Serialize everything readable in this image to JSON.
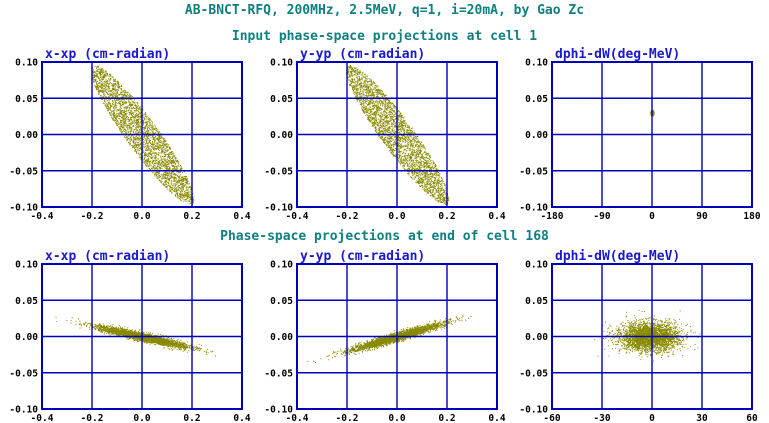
{
  "title": "AB-BNCT-RFQ, 200MHz, 2.5MeV, q=1, i=20mA, by Gao Zc",
  "row_titles": [
    "Input phase-space projections at cell 1",
    "Phase-space projections at end of cell 168"
  ],
  "colors": {
    "heading": "#0f7f7f",
    "panel_title": "#1a1acc",
    "frame": "#0000b8",
    "tick_label": "#000000",
    "points": "#8a8a00"
  },
  "chart_data": [
    {
      "type": "scatter",
      "title": "x-xp (cm-radian)",
      "xlim": [
        -0.4,
        0.4
      ],
      "ylim": [
        -0.1,
        0.1
      ],
      "xticks": [
        "-0.4",
        "-0.2",
        "0.0",
        "0.2",
        "0.4"
      ],
      "yticks": [
        "0.10",
        "0.05",
        "0.00",
        "-0.05",
        "-0.10"
      ],
      "grid": true,
      "distribution": {
        "center": [
          0.0,
          0.0
        ],
        "major_axis_end": [
          -0.2,
          0.095
        ],
        "minor_half_width": 0.022,
        "profile": "uniform"
      }
    },
    {
      "type": "scatter",
      "title": "y-yp (cm-radian)",
      "xlim": [
        -0.4,
        0.4
      ],
      "ylim": [
        -0.1,
        0.1
      ],
      "xticks": [
        "-0.4",
        "-0.2",
        "0.0",
        "0.2",
        "0.4"
      ],
      "yticks": [
        "0.10",
        "0.05",
        "0.00",
        "-0.05",
        "-0.10"
      ],
      "grid": true,
      "distribution": {
        "center": [
          0.0,
          0.0
        ],
        "major_axis_end": [
          -0.2,
          0.095
        ],
        "minor_half_width": 0.022,
        "profile": "uniform"
      }
    },
    {
      "type": "scatter",
      "title": "dphi-dW(deg-MeV)",
      "xlim": [
        -180,
        180
      ],
      "ylim": [
        -0.1,
        0.1
      ],
      "xticks": [
        "-180",
        "-90",
        "0",
        "90",
        "180"
      ],
      "yticks": [
        "0.10",
        "0.05",
        "0.00",
        "-0.05",
        "-0.10"
      ],
      "grid": true,
      "distribution": {
        "center": [
          0.0,
          0.03
        ],
        "major_axis_end": [
          3.0,
          0.03
        ],
        "minor_half_width": 0.004,
        "profile": "uniform"
      }
    },
    {
      "type": "scatter",
      "title": "x-xp (cm-radian)",
      "xlim": [
        -0.4,
        0.4
      ],
      "ylim": [
        -0.1,
        0.1
      ],
      "xticks": [
        "-0.4",
        "-0.2",
        "0.0",
        "0.2",
        "0.4"
      ],
      "yticks": [
        "0.10",
        "0.05",
        "0.00",
        "-0.05",
        "-0.10"
      ],
      "grid": true,
      "distribution": {
        "center": [
          0.0,
          0.0
        ],
        "major_axis_end": [
          -0.2,
          0.015
        ],
        "minor_half_width": 0.006,
        "profile": "gaussian"
      }
    },
    {
      "type": "scatter",
      "title": "y-yp (cm-radian)",
      "xlim": [
        -0.4,
        0.4
      ],
      "ylim": [
        -0.1,
        0.1
      ],
      "xticks": [
        "-0.4",
        "-0.2",
        "0.0",
        "0.2",
        "0.4"
      ],
      "yticks": [
        "0.10",
        "0.05",
        "0.00",
        "-0.05",
        "-0.10"
      ],
      "grid": true,
      "distribution": {
        "center": [
          0.0,
          0.0
        ],
        "major_axis_end": [
          0.2,
          0.02
        ],
        "minor_half_width": 0.006,
        "profile": "gaussian"
      }
    },
    {
      "type": "scatter",
      "title": "dphi-dW(deg-MeV)",
      "xlim": [
        -60,
        60
      ],
      "ylim": [
        -0.1,
        0.1
      ],
      "xticks": [
        "-60",
        "-30",
        "0",
        "30",
        "60"
      ],
      "yticks": [
        "0.10",
        "0.05",
        "0.00",
        "-0.05",
        "-0.10"
      ],
      "grid": true,
      "distribution": {
        "center": [
          -2.0,
          0.0
        ],
        "major_axis_end": [
          18.0,
          0.0
        ],
        "minor_half_width": 0.022,
        "profile": "gaussian"
      }
    }
  ]
}
